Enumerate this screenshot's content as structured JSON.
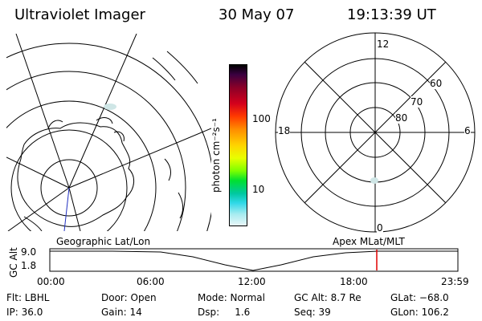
{
  "header": {
    "title": "Ultraviolet Imager",
    "date": "30 May 07",
    "time": "19:13:39 UT"
  },
  "colorbar": {
    "unit": "photon cm⁻²s⁻¹",
    "ticks": [
      "100",
      "10"
    ]
  },
  "polar": {
    "labels": [
      "12",
      "18",
      "6",
      "0",
      "60",
      "70",
      "80"
    ]
  },
  "panels": {
    "left_label": "Geographic Lat/Lon",
    "right_label": "Apex MLat/MLT"
  },
  "timeline": {
    "ylabel": "GC Alt",
    "y_ticks": [
      "9.0",
      "1.8"
    ],
    "x_ticks": [
      "00:00",
      "06:00",
      "12:00",
      "18:00",
      "23:59"
    ],
    "marker_color": "#e00000"
  },
  "info": {
    "row1": [
      "Flt: LBHL",
      "Door: Open",
      "Mode: Normal",
      "GC Alt: 8.7 Re",
      "GLat: −68.0"
    ],
    "row2": [
      "IP: 36.0",
      "Gain: 14",
      "Dsp:     1.6",
      "Seq: 39",
      "GLon: 106.2"
    ]
  }
}
